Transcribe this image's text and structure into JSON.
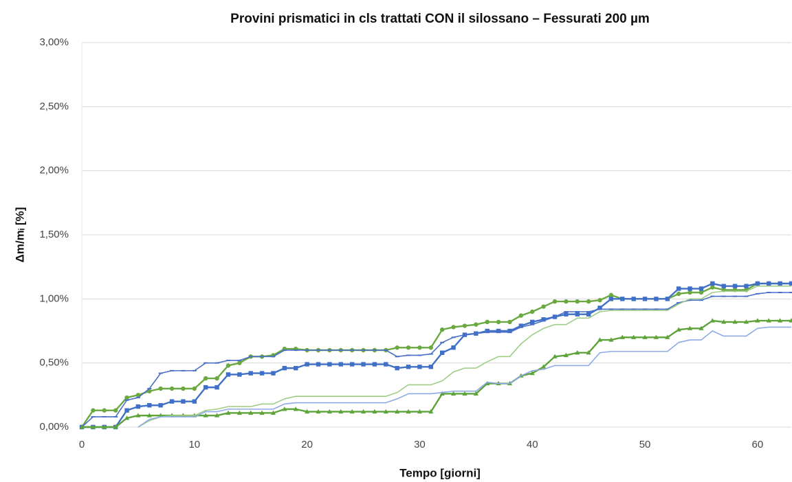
{
  "chart_data": {
    "type": "line",
    "title": "Provini prismatici in cls trattati CON il silossano – Fessurati 200 µm",
    "x_label": "Tempo [giorni]",
    "y_label": "Δm/mᵢ [%]",
    "x": [
      0,
      1,
      2,
      3,
      4,
      5,
      6,
      7,
      8,
      9,
      10,
      11,
      12,
      13,
      14,
      15,
      16,
      17,
      18,
      19,
      20,
      21,
      22,
      23,
      24,
      25,
      26,
      27,
      28,
      29,
      30,
      31,
      32,
      33,
      34,
      35,
      36,
      37,
      38,
      39,
      40,
      41,
      42,
      43,
      44,
      45,
      46,
      47,
      48,
      49,
      50,
      51,
      52,
      53,
      54,
      55,
      56,
      57,
      58,
      59,
      60,
      61,
      62,
      63
    ],
    "xlim": [
      0,
      63
    ],
    "xticks": [
      0,
      10,
      20,
      30,
      40,
      50,
      60
    ],
    "ylim": [
      0,
      3
    ],
    "yticks": [
      {
        "value": 0,
        "label": "0,00%"
      },
      {
        "value": 0.5,
        "label": "0,50%"
      },
      {
        "value": 1,
        "label": "1,00%"
      },
      {
        "value": 1.5,
        "label": "1,50%"
      },
      {
        "value": 2,
        "label": "2,00%"
      },
      {
        "value": 2.5,
        "label": "2,50%"
      },
      {
        "value": 3,
        "label": "3,00%"
      }
    ],
    "grid": true,
    "series": [
      {
        "color": "#6aa840",
        "marker": "circle",
        "values": [
          0,
          0.13,
          0.13,
          0.13,
          0.23,
          0.25,
          0.28,
          0.3,
          0.3,
          0.3,
          0.3,
          0.38,
          0.38,
          0.48,
          0.5,
          0.55,
          0.55,
          0.56,
          0.61,
          0.61,
          0.6,
          0.6,
          0.6,
          0.6,
          0.6,
          0.6,
          0.6,
          0.6,
          0.62,
          0.62,
          0.62,
          0.62,
          0.76,
          0.78,
          0.79,
          0.8,
          0.82,
          0.82,
          0.82,
          0.87,
          0.9,
          0.94,
          0.98,
          0.98,
          0.98,
          0.98,
          0.99,
          1.03,
          1.0,
          1.0,
          1.0,
          1.0,
          1.0,
          1.04,
          1.05,
          1.05,
          1.09,
          1.07,
          1.07,
          1.07,
          1.12,
          1.12,
          1.12,
          1.12
        ]
      },
      {
        "color": "#3f6fc6",
        "marker": "square",
        "values": [
          0,
          0,
          0,
          0,
          0.13,
          0.16,
          0.17,
          0.17,
          0.2,
          0.2,
          0.2,
          0.31,
          0.31,
          0.41,
          0.41,
          0.42,
          0.42,
          0.42,
          0.46,
          0.46,
          0.49,
          0.49,
          0.49,
          0.49,
          0.49,
          0.49,
          0.49,
          0.49,
          0.46,
          0.47,
          0.47,
          0.47,
          0.58,
          0.62,
          0.72,
          0.73,
          0.75,
          0.75,
          0.75,
          0.79,
          0.82,
          0.84,
          0.86,
          0.88,
          0.88,
          0.88,
          0.93,
          1.0,
          1.0,
          1.0,
          1.0,
          1.0,
          1.0,
          1.08,
          1.08,
          1.08,
          1.12,
          1.1,
          1.1,
          1.1,
          1.12,
          1.12,
          1.12,
          1.12
        ]
      },
      {
        "color": "#4a6fc8",
        "marker": "dash",
        "values": [
          0,
          0.08,
          0.08,
          0.08,
          0.21,
          0.23,
          0.3,
          0.42,
          0.44,
          0.44,
          0.44,
          0.5,
          0.5,
          0.52,
          0.52,
          0.55,
          0.55,
          0.55,
          0.6,
          0.6,
          0.6,
          0.6,
          0.6,
          0.6,
          0.6,
          0.6,
          0.6,
          0.6,
          0.55,
          0.56,
          0.56,
          0.57,
          0.66,
          0.7,
          0.72,
          0.73,
          0.74,
          0.74,
          0.74,
          0.78,
          0.8,
          0.83,
          0.86,
          0.9,
          0.9,
          0.9,
          0.92,
          0.92,
          0.92,
          0.92,
          0.92,
          0.92,
          0.92,
          0.97,
          0.99,
          0.99,
          1.02,
          1.02,
          1.02,
          1.02,
          1.04,
          1.05,
          1.05,
          1.05
        ]
      },
      {
        "color": "#5ea33a",
        "marker": "triangle",
        "values": [
          0,
          0,
          0,
          0,
          0.07,
          0.09,
          0.09,
          0.09,
          0.09,
          0.09,
          0.09,
          0.09,
          0.09,
          0.11,
          0.11,
          0.11,
          0.11,
          0.11,
          0.14,
          0.14,
          0.12,
          0.12,
          0.12,
          0.12,
          0.12,
          0.12,
          0.12,
          0.12,
          0.12,
          0.12,
          0.12,
          0.12,
          0.26,
          0.26,
          0.26,
          0.26,
          0.34,
          0.34,
          0.34,
          0.4,
          0.42,
          0.47,
          0.55,
          0.56,
          0.58,
          0.58,
          0.68,
          0.68,
          0.7,
          0.7,
          0.7,
          0.7,
          0.7,
          0.76,
          0.77,
          0.77,
          0.83,
          0.82,
          0.82,
          0.82,
          0.83,
          0.83,
          0.83,
          0.83
        ]
      },
      {
        "color": "#9fcc85",
        "values": [
          null,
          null,
          null,
          null,
          null,
          0,
          0.05,
          0.08,
          0.09,
          0.09,
          0.09,
          0.13,
          0.14,
          0.16,
          0.16,
          0.16,
          0.18,
          0.18,
          0.22,
          0.24,
          0.24,
          0.24,
          0.24,
          0.24,
          0.24,
          0.24,
          0.24,
          0.24,
          0.27,
          0.33,
          0.33,
          0.33,
          0.36,
          0.43,
          0.46,
          0.46,
          0.51,
          0.55,
          0.55,
          0.65,
          0.72,
          0.77,
          0.8,
          0.8,
          0.85,
          0.85,
          0.9,
          0.91,
          0.91,
          0.91,
          0.91,
          0.91,
          0.91,
          0.96,
          1.0,
          1.0,
          1.05,
          1.06,
          1.06,
          1.06,
          1.1,
          1.1,
          1.1,
          1.1
        ]
      },
      {
        "color": "#8ea9e8",
        "values": [
          null,
          null,
          null,
          null,
          null,
          0,
          0.06,
          0.08,
          0.08,
          0.08,
          0.08,
          0.12,
          0.12,
          0.14,
          0.14,
          0.14,
          0.14,
          0.14,
          0.18,
          0.19,
          0.19,
          0.19,
          0.19,
          0.19,
          0.19,
          0.19,
          0.19,
          0.19,
          0.22,
          0.26,
          0.26,
          0.26,
          0.27,
          0.28,
          0.28,
          0.28,
          0.35,
          0.34,
          0.34,
          0.4,
          0.44,
          0.45,
          0.48,
          0.48,
          0.48,
          0.48,
          0.58,
          0.59,
          0.59,
          0.59,
          0.59,
          0.59,
          0.59,
          0.66,
          0.68,
          0.68,
          0.75,
          0.71,
          0.71,
          0.71,
          0.77,
          0.78,
          0.78,
          0.78
        ]
      }
    ]
  }
}
